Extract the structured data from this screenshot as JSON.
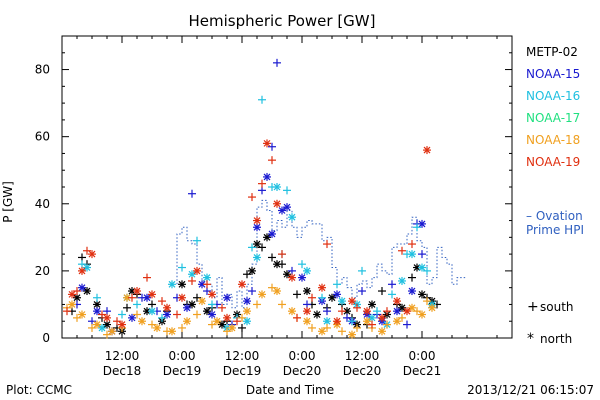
{
  "chart_data": {
    "type": "scatter",
    "title": "Hemispheric Power [GW]",
    "ylabel": "P [GW]",
    "xlabel": "Date and Time",
    "ylim": [
      0,
      90
    ],
    "yticks": [
      0,
      20,
      40,
      60,
      80
    ],
    "xlim_hours": [
      0,
      90
    ],
    "x_ticks": [
      {
        "hour": 12,
        "time": "12:00",
        "date": "Dec18"
      },
      {
        "hour": 24,
        "time": "0:00",
        "date": "Dec19"
      },
      {
        "hour": 36,
        "time": "12:00",
        "date": "Dec19"
      },
      {
        "hour": 48,
        "time": "0:00",
        "date": "Dec20"
      },
      {
        "hour": 60,
        "time": "12:00",
        "date": "Dec20"
      },
      {
        "hour": 72,
        "time": "0:00",
        "date": "Dec21"
      }
    ],
    "markers": {
      "south": "+",
      "north": "*"
    },
    "series": [
      {
        "name": "METP-02",
        "color": "#000000",
        "south": [
          [
            2,
            8
          ],
          [
            4,
            24
          ],
          [
            5,
            22
          ],
          [
            8,
            6
          ],
          [
            11,
            3
          ],
          [
            13,
            9
          ],
          [
            15,
            13
          ],
          [
            18,
            10
          ],
          [
            21,
            8
          ],
          [
            25,
            10
          ],
          [
            27,
            12
          ],
          [
            30,
            9
          ],
          [
            33,
            5
          ],
          [
            36,
            3
          ],
          [
            37,
            19
          ],
          [
            40,
            27
          ],
          [
            42,
            24
          ],
          [
            44,
            22
          ],
          [
            47,
            13
          ],
          [
            50,
            10
          ],
          [
            53,
            9
          ],
          [
            56,
            10
          ],
          [
            58,
            6
          ],
          [
            61,
            4
          ],
          [
            64,
            14
          ],
          [
            67,
            10
          ],
          [
            70,
            18
          ],
          [
            73,
            12
          ],
          [
            75,
            10
          ]
        ],
        "north": [
          [
            3,
            12
          ],
          [
            5,
            14
          ],
          [
            7,
            10
          ],
          [
            9,
            4
          ],
          [
            12,
            2
          ],
          [
            14,
            14
          ],
          [
            17,
            8
          ],
          [
            20,
            5
          ],
          [
            24,
            16
          ],
          [
            26,
            10
          ],
          [
            29,
            8
          ],
          [
            32,
            4
          ],
          [
            35,
            7
          ],
          [
            38,
            20
          ],
          [
            39,
            28
          ],
          [
            41,
            30
          ],
          [
            43,
            22
          ],
          [
            45,
            19
          ],
          [
            49,
            14
          ],
          [
            51,
            7
          ],
          [
            54,
            12
          ],
          [
            57,
            8
          ],
          [
            59,
            4
          ],
          [
            62,
            10
          ],
          [
            65,
            7
          ],
          [
            68,
            9
          ],
          [
            71,
            21
          ],
          [
            72,
            13
          ],
          [
            74,
            11
          ]
        ]
      },
      {
        "name": "NOAA-15",
        "color": "#1a1ad0",
        "south": [
          [
            3,
            10
          ],
          [
            6,
            5
          ],
          [
            9,
            8
          ],
          [
            16,
            12
          ],
          [
            19,
            8
          ],
          [
            23,
            12
          ],
          [
            26,
            43
          ],
          [
            29,
            14
          ],
          [
            31,
            10
          ],
          [
            34,
            4
          ],
          [
            38,
            14
          ],
          [
            40,
            44
          ],
          [
            42,
            57
          ],
          [
            43,
            82
          ],
          [
            46,
            20
          ],
          [
            49,
            10
          ],
          [
            53,
            8
          ],
          [
            57,
            6
          ],
          [
            60,
            14
          ],
          [
            63,
            7
          ],
          [
            66,
            16
          ],
          [
            69,
            4
          ],
          [
            71,
            34
          ],
          [
            72,
            25
          ]
        ],
        "north": [
          [
            4,
            15
          ],
          [
            7,
            8
          ],
          [
            10,
            2
          ],
          [
            14,
            6
          ],
          [
            17,
            12
          ],
          [
            21,
            7
          ],
          [
            25,
            9
          ],
          [
            28,
            16
          ],
          [
            30,
            7
          ],
          [
            33,
            12
          ],
          [
            37,
            11
          ],
          [
            39,
            33
          ],
          [
            41,
            48
          ],
          [
            42,
            31
          ],
          [
            44,
            38
          ],
          [
            45,
            39
          ],
          [
            48,
            18
          ],
          [
            52,
            11
          ],
          [
            55,
            13
          ],
          [
            58,
            5
          ],
          [
            61,
            7
          ],
          [
            64,
            5
          ],
          [
            67,
            8
          ],
          [
            70,
            14
          ],
          [
            72,
            34
          ]
        ]
      },
      {
        "name": "NOAA-16",
        "color": "#20c0e0",
        "south": [
          [
            4,
            22
          ],
          [
            7,
            12
          ],
          [
            12,
            7
          ],
          [
            15,
            10
          ],
          [
            20,
            6
          ],
          [
            24,
            21
          ],
          [
            27,
            29
          ],
          [
            30,
            10
          ],
          [
            35,
            6
          ],
          [
            38,
            27
          ],
          [
            40,
            71
          ],
          [
            42,
            45
          ],
          [
            44,
            25
          ],
          [
            45,
            44
          ],
          [
            48,
            22
          ],
          [
            52,
            12
          ],
          [
            55,
            16
          ],
          [
            58,
            5
          ],
          [
            60,
            20
          ],
          [
            63,
            8
          ],
          [
            66,
            13
          ],
          [
            69,
            25
          ],
          [
            71,
            33
          ],
          [
            73,
            20
          ]
        ],
        "north": [
          [
            5,
            21
          ],
          [
            8,
            3
          ],
          [
            13,
            12
          ],
          [
            18,
            8
          ],
          [
            22,
            16
          ],
          [
            26,
            19
          ],
          [
            29,
            18
          ],
          [
            33,
            3
          ],
          [
            37,
            5
          ],
          [
            39,
            24
          ],
          [
            43,
            45
          ],
          [
            46,
            36
          ],
          [
            49,
            20
          ],
          [
            53,
            5
          ],
          [
            56,
            11
          ],
          [
            59,
            10
          ],
          [
            62,
            6
          ],
          [
            65,
            4
          ],
          [
            68,
            17
          ],
          [
            70,
            25
          ],
          [
            72,
            21
          ],
          [
            74,
            10
          ]
        ]
      },
      {
        "name": "NOAA-17",
        "color": "#20e080",
        "south": [],
        "north": []
      },
      {
        "name": "NOAA-18",
        "color": "#f0a020",
        "south": [
          [
            1,
            9
          ],
          [
            3,
            6
          ],
          [
            6,
            3
          ],
          [
            9,
            1
          ],
          [
            12,
            3
          ],
          [
            15,
            7
          ],
          [
            18,
            4
          ],
          [
            21,
            2
          ],
          [
            24,
            3
          ],
          [
            27,
            7
          ],
          [
            30,
            4
          ],
          [
            33,
            2
          ],
          [
            36,
            6
          ],
          [
            39,
            10
          ],
          [
            42,
            15
          ],
          [
            44,
            10
          ],
          [
            47,
            6
          ],
          [
            50,
            3
          ],
          [
            53,
            3
          ],
          [
            56,
            2
          ],
          [
            59,
            3
          ],
          [
            62,
            3
          ],
          [
            65,
            4
          ],
          [
            68,
            6
          ],
          [
            71,
            8
          ],
          [
            73,
            11
          ]
        ],
        "north": [
          [
            2,
            10
          ],
          [
            4,
            7
          ],
          [
            7,
            4
          ],
          [
            10,
            2
          ],
          [
            13,
            12
          ],
          [
            16,
            5
          ],
          [
            19,
            3
          ],
          [
            22,
            2
          ],
          [
            25,
            5
          ],
          [
            28,
            11
          ],
          [
            31,
            5
          ],
          [
            34,
            3
          ],
          [
            37,
            8
          ],
          [
            40,
            13
          ],
          [
            43,
            14
          ],
          [
            46,
            8
          ],
          [
            49,
            5
          ],
          [
            52,
            2
          ],
          [
            55,
            4
          ],
          [
            58,
            1
          ],
          [
            61,
            5
          ],
          [
            64,
            2
          ],
          [
            67,
            5
          ],
          [
            70,
            9
          ],
          [
            72,
            7
          ],
          [
            74,
            9
          ]
        ]
      },
      {
        "name": "NOAA-19",
        "color": "#e03010",
        "south": [
          [
            1,
            8
          ],
          [
            3,
            14
          ],
          [
            5,
            26
          ],
          [
            8,
            7
          ],
          [
            11,
            5
          ],
          [
            14,
            12
          ],
          [
            17,
            18
          ],
          [
            20,
            11
          ],
          [
            23,
            7
          ],
          [
            26,
            17
          ],
          [
            29,
            16
          ],
          [
            32,
            9
          ],
          [
            35,
            5
          ],
          [
            38,
            42
          ],
          [
            40,
            46
          ],
          [
            42,
            53
          ],
          [
            44,
            25
          ],
          [
            47,
            6
          ],
          [
            50,
            12
          ],
          [
            53,
            28
          ],
          [
            56,
            8
          ],
          [
            59,
            9
          ],
          [
            62,
            4
          ],
          [
            65,
            8
          ],
          [
            68,
            26
          ],
          [
            70,
            28
          ]
        ],
        "north": [
          [
            2,
            13
          ],
          [
            4,
            20
          ],
          [
            6,
            25
          ],
          [
            9,
            6
          ],
          [
            12,
            4
          ],
          [
            15,
            14
          ],
          [
            18,
            13
          ],
          [
            21,
            9
          ],
          [
            24,
            12
          ],
          [
            27,
            20
          ],
          [
            30,
            13
          ],
          [
            33,
            6
          ],
          [
            36,
            16
          ],
          [
            39,
            35
          ],
          [
            41,
            58
          ],
          [
            43,
            40
          ],
          [
            46,
            18
          ],
          [
            49,
            8
          ],
          [
            52,
            15
          ],
          [
            55,
            5
          ],
          [
            58,
            11
          ],
          [
            61,
            8
          ],
          [
            64,
            6
          ],
          [
            67,
            11
          ],
          [
            69,
            8
          ],
          [
            73,
            56
          ]
        ]
      },
      {
        "name": "Ovation Prime HPI",
        "color": "#3060c0",
        "line": [
          [
            23,
            16
          ],
          [
            24,
            31
          ],
          [
            25,
            33
          ],
          [
            26,
            29
          ],
          [
            27,
            28
          ],
          [
            28,
            22
          ],
          [
            29,
            17
          ],
          [
            30,
            16
          ],
          [
            31,
            12
          ],
          [
            32,
            18
          ],
          [
            33,
            10
          ],
          [
            34,
            13
          ],
          [
            35,
            9
          ],
          [
            36,
            14
          ],
          [
            37,
            9
          ],
          [
            38,
            16
          ],
          [
            39,
            22
          ],
          [
            40,
            39
          ],
          [
            41,
            41
          ],
          [
            42,
            38
          ],
          [
            43,
            32
          ],
          [
            44,
            35
          ],
          [
            45,
            33
          ],
          [
            46,
            38
          ],
          [
            47,
            33
          ],
          [
            48,
            30
          ],
          [
            49,
            33
          ],
          [
            50,
            35
          ],
          [
            51,
            34
          ],
          [
            52,
            34
          ],
          [
            53,
            29
          ],
          [
            54,
            30
          ],
          [
            55,
            21
          ],
          [
            56,
            16
          ],
          [
            57,
            18
          ],
          [
            58,
            15
          ],
          [
            59,
            12
          ],
          [
            60,
            16
          ],
          [
            61,
            17
          ],
          [
            62,
            15
          ],
          [
            63,
            18
          ],
          [
            64,
            22
          ],
          [
            65,
            20
          ],
          [
            66,
            19
          ],
          [
            67,
            27
          ],
          [
            68,
            28
          ],
          [
            69,
            28
          ],
          [
            70,
            31
          ],
          [
            71,
            36
          ],
          [
            72,
            29
          ],
          [
            73,
            27
          ],
          [
            74,
            16
          ],
          [
            75,
            18
          ],
          [
            76,
            27
          ],
          [
            77,
            24
          ],
          [
            78,
            22
          ],
          [
            79,
            16
          ],
          [
            80,
            18
          ]
        ]
      }
    ]
  },
  "legend": {
    "items": [
      "METP-02",
      "NOAA-15",
      "NOAA-16",
      "NOAA-17",
      "NOAA-18",
      "NOAA-19"
    ],
    "ovation_line1": "– Ovation",
    "ovation_line2": "Prime HPI",
    "south_label": "south",
    "north_label": "north",
    "south_symbol": "+",
    "north_symbol": "*"
  },
  "footer": {
    "plot_credit": "Plot: CCMC",
    "timestamp": "2013/12/21 06:15:07"
  }
}
